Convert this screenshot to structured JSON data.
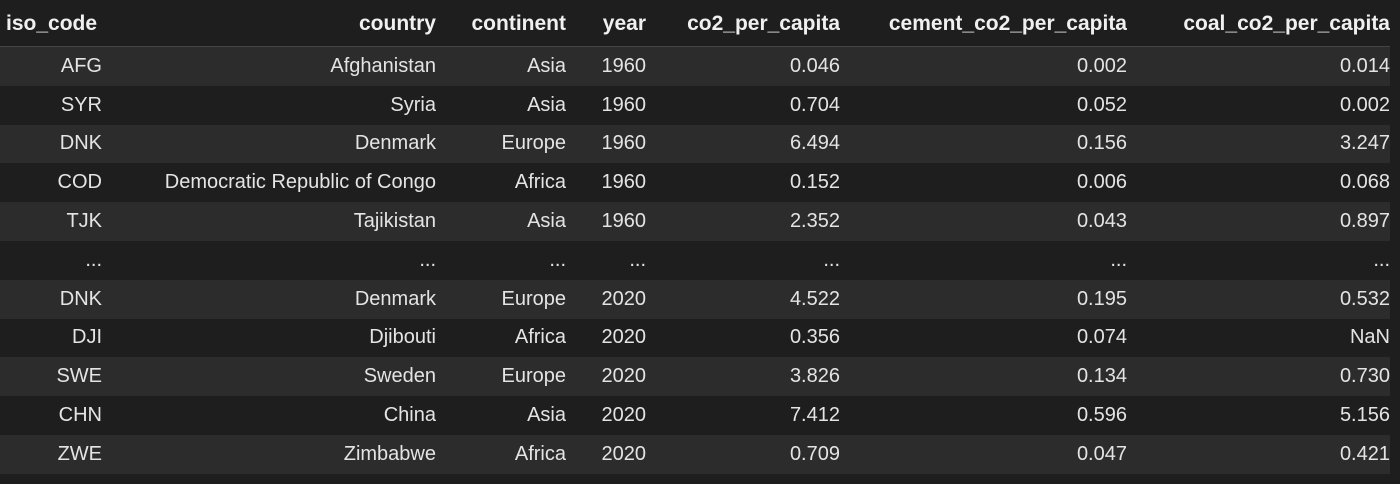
{
  "table": {
    "columns": [
      "iso_code",
      "country",
      "continent",
      "year",
      "co2_per_capita",
      "cement_co2_per_capita",
      "coal_co2_per_capita"
    ],
    "rows": [
      [
        "AFG",
        "Afghanistan",
        "Asia",
        "1960",
        "0.046",
        "0.002",
        "0.014"
      ],
      [
        "SYR",
        "Syria",
        "Asia",
        "1960",
        "0.704",
        "0.052",
        "0.002"
      ],
      [
        "DNK",
        "Denmark",
        "Europe",
        "1960",
        "6.494",
        "0.156",
        "3.247"
      ],
      [
        "COD",
        "Democratic Republic of Congo",
        "Africa",
        "1960",
        "0.152",
        "0.006",
        "0.068"
      ],
      [
        "TJK",
        "Tajikistan",
        "Asia",
        "1960",
        "2.352",
        "0.043",
        "0.897"
      ],
      [
        "...",
        "...",
        "...",
        "...",
        "...",
        "...",
        "..."
      ],
      [
        "DNK",
        "Denmark",
        "Europe",
        "2020",
        "4.522",
        "0.195",
        "0.532"
      ],
      [
        "DJI",
        "Djibouti",
        "Africa",
        "2020",
        "0.356",
        "0.074",
        "NaN"
      ],
      [
        "SWE",
        "Sweden",
        "Europe",
        "2020",
        "3.826",
        "0.134",
        "0.730"
      ],
      [
        "CHN",
        "China",
        "Asia",
        "2020",
        "7.412",
        "0.596",
        "5.156"
      ],
      [
        "ZWE",
        "Zimbabwe",
        "Africa",
        "2020",
        "0.709",
        "0.047",
        "0.421"
      ]
    ]
  }
}
